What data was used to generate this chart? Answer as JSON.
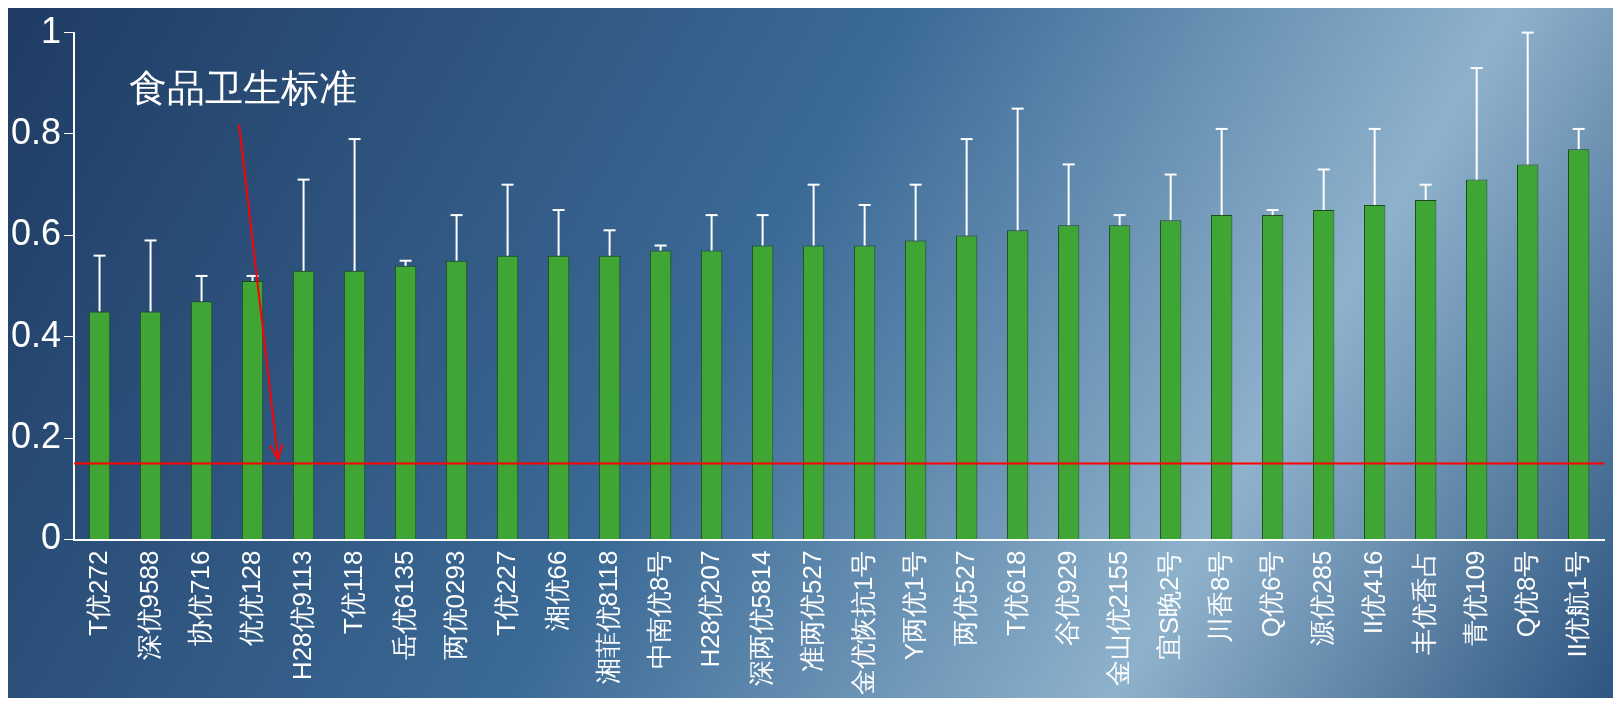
{
  "chart_data": {
    "type": "bar",
    "categories": [
      "T优272",
      "深优9588",
      "协优716",
      "优优128",
      "H28优9113",
      "T优118",
      "岳优6135",
      "两优0293",
      "T优227",
      "湘优66",
      "湘菲优8118",
      "中南优8号",
      "H28优207",
      "深两优5814",
      "准两优527",
      "金优恢抗1号",
      "Y两优1号",
      "两优527",
      "T优618",
      "谷优929",
      "金山优2155",
      "宜S晚2号",
      "川香8号",
      "Q优6号",
      "源优285",
      "II优416",
      "丰优香占",
      "青优109",
      "Q优8号",
      "II优航1号"
    ],
    "values": [
      0.45,
      0.45,
      0.47,
      0.51,
      0.53,
      0.53,
      0.54,
      0.55,
      0.56,
      0.56,
      0.56,
      0.57,
      0.57,
      0.58,
      0.58,
      0.58,
      0.59,
      0.6,
      0.61,
      0.62,
      0.62,
      0.63,
      0.64,
      0.64,
      0.65,
      0.66,
      0.67,
      0.71,
      0.74,
      0.77
    ],
    "errors": [
      [
        0.45,
        0.56
      ],
      [
        0.45,
        0.59
      ],
      [
        0.47,
        0.52
      ],
      [
        0.51,
        0.52
      ],
      [
        0.53,
        0.71
      ],
      [
        0.53,
        0.79
      ],
      [
        0.54,
        0.55
      ],
      [
        0.55,
        0.64
      ],
      [
        0.56,
        0.7
      ],
      [
        0.56,
        0.65
      ],
      [
        0.56,
        0.61
      ],
      [
        0.57,
        0.58
      ],
      [
        0.57,
        0.64
      ],
      [
        0.58,
        0.64
      ],
      [
        0.58,
        0.7
      ],
      [
        0.58,
        0.66
      ],
      [
        0.59,
        0.7
      ],
      [
        0.6,
        0.79
      ],
      [
        0.61,
        0.85
      ],
      [
        0.62,
        0.74
      ],
      [
        0.62,
        0.64
      ],
      [
        0.63,
        0.72
      ],
      [
        0.64,
        0.81
      ],
      [
        0.64,
        0.65
      ],
      [
        0.65,
        0.73
      ],
      [
        0.66,
        0.81
      ],
      [
        0.67,
        0.7
      ],
      [
        0.71,
        0.93
      ],
      [
        0.74,
        1
      ],
      [
        0.77,
        0.81
      ]
    ],
    "color": "#3fa535",
    "ylim": [
      0,
      1
    ],
    "yticks": [
      0,
      0.2,
      0.4,
      0.6,
      0.8,
      1
    ],
    "grid": false,
    "legend": false,
    "ref_lines": [
      {
        "axis": "y",
        "value": 0.15,
        "label": "食品卫生标准",
        "color": "#ff0000"
      }
    ]
  }
}
